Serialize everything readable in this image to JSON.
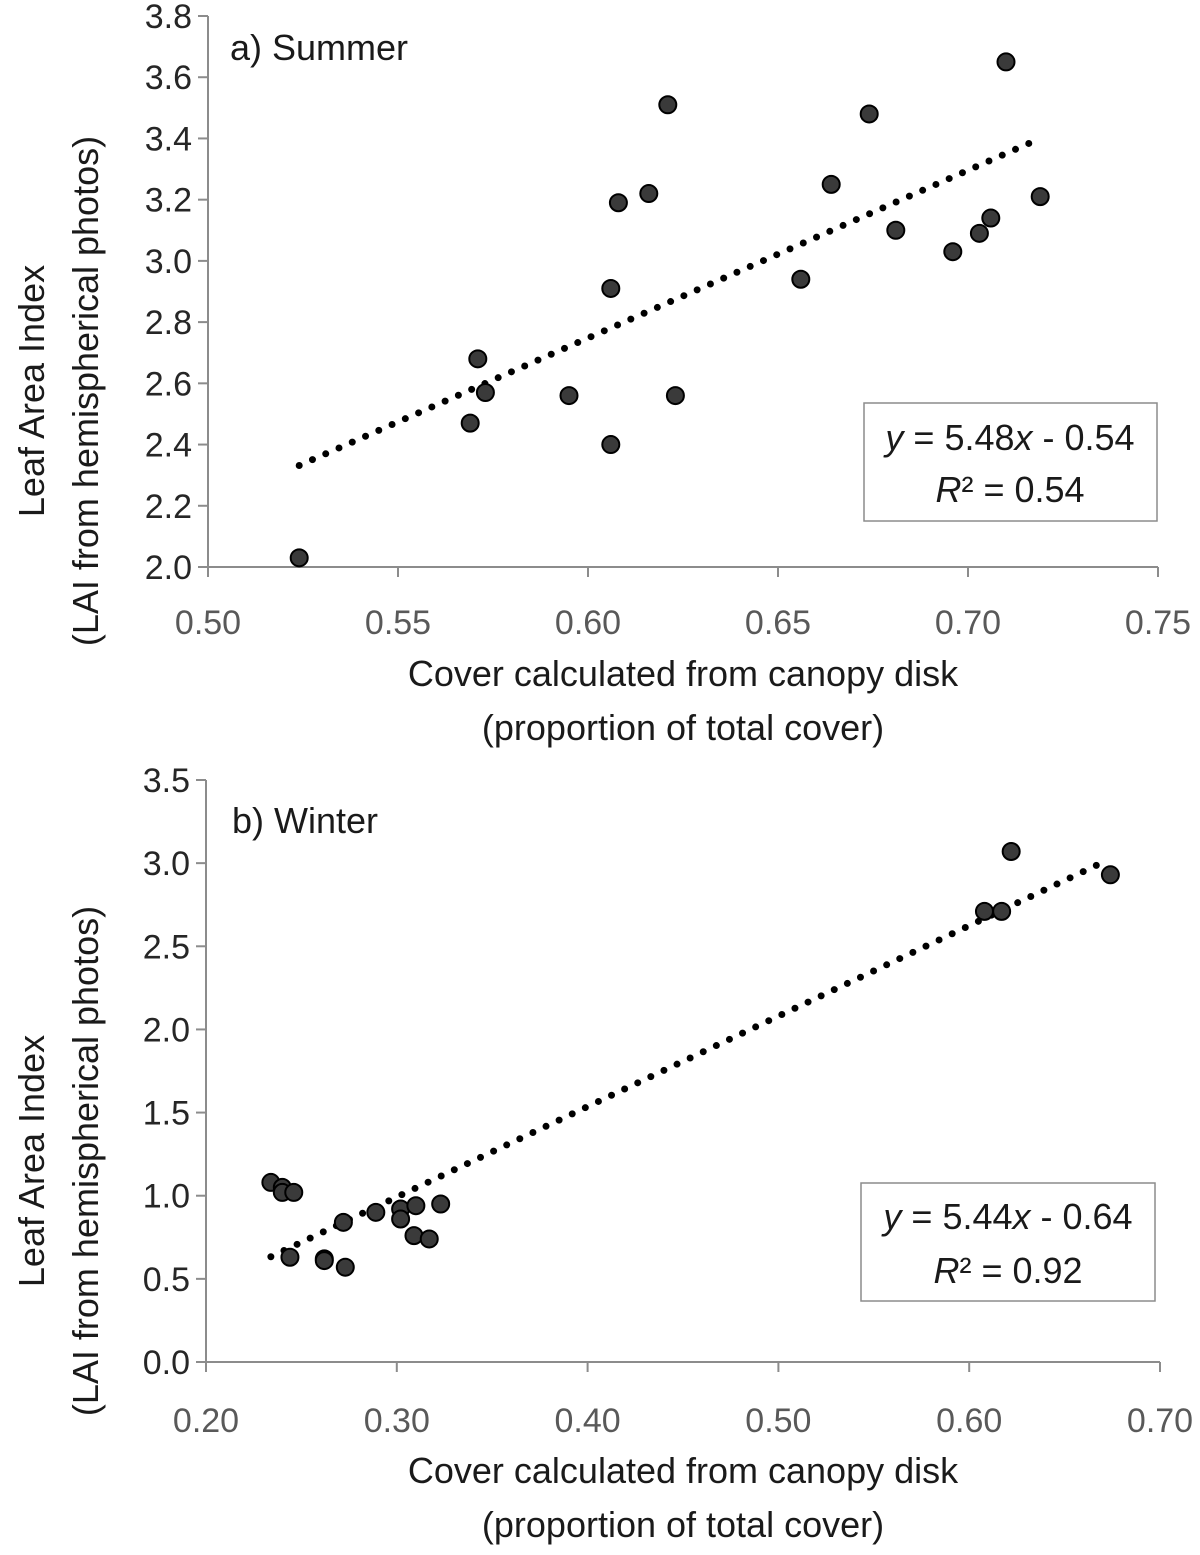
{
  "chart_data": [
    {
      "type": "scatter",
      "panel_label": "a) Summer",
      "xlabel": "Cover calculated from canopy disk",
      "xlabel2": "(proportion of total cover)",
      "ylabel": "Leaf Area Index",
      "ylabel2": "(LAI from hemispherical photos)",
      "xlim": [
        0.5,
        0.75
      ],
      "ylim": [
        2.0,
        3.8
      ],
      "xticks": [
        0.5,
        0.55,
        0.6,
        0.65,
        0.7,
        0.75
      ],
      "yticks": [
        2.0,
        2.2,
        2.4,
        2.6,
        2.8,
        3.0,
        3.2,
        3.4,
        3.6,
        3.8
      ],
      "x_decimals": 2,
      "y_decimals": 1,
      "grid": false,
      "series": [
        {
          "name": "Summer",
          "points": [
            [
              0.524,
              2.03
            ],
            [
              0.569,
              2.47
            ],
            [
              0.571,
              2.68
            ],
            [
              0.573,
              2.57
            ],
            [
              0.595,
              2.56
            ],
            [
              0.606,
              2.91
            ],
            [
              0.606,
              2.4
            ],
            [
              0.608,
              3.19
            ],
            [
              0.616,
              3.22
            ],
            [
              0.621,
              3.51
            ],
            [
              0.623,
              2.56
            ],
            [
              0.656,
              2.94
            ],
            [
              0.664,
              3.25
            ],
            [
              0.674,
              3.48
            ],
            [
              0.681,
              3.1
            ],
            [
              0.696,
              3.03
            ],
            [
              0.703,
              3.09
            ],
            [
              0.706,
              3.14
            ],
            [
              0.71,
              3.65
            ],
            [
              0.719,
              3.21
            ]
          ]
        }
      ],
      "trendline": {
        "slope": 5.48,
        "intercept": -0.54,
        "x_range": [
          0.524,
          0.719
        ],
        "style": "dotted"
      },
      "equation": {
        "y_part": "y",
        "text_mid": " = 5.48",
        "x_part": "x",
        "text_end": " - 0.54",
        "r_part": "R",
        "r_text": "² = 0.54",
        "placement": "bottom-right"
      }
    },
    {
      "type": "scatter",
      "panel_label": "b) Winter",
      "xlabel": "Cover calculated from canopy disk",
      "xlabel2": "(proportion of total cover)",
      "ylabel": "Leaf Area Index",
      "ylabel2": "(LAI from hemispherical photos)",
      "xlim": [
        0.2,
        0.7
      ],
      "ylim": [
        0.0,
        3.5
      ],
      "xticks": [
        0.2,
        0.3,
        0.4,
        0.5,
        0.6,
        0.7
      ],
      "yticks": [
        0.0,
        0.5,
        1.0,
        1.5,
        2.0,
        2.5,
        3.0,
        3.5
      ],
      "x_decimals": 2,
      "y_decimals": 1,
      "grid": false,
      "series": [
        {
          "name": "Winter",
          "points": [
            [
              0.234,
              1.08
            ],
            [
              0.24,
              1.05
            ],
            [
              0.24,
              1.02
            ],
            [
              0.246,
              1.02
            ],
            [
              0.244,
              0.63
            ],
            [
              0.262,
              0.62
            ],
            [
              0.262,
              0.61
            ],
            [
              0.272,
              0.84
            ],
            [
              0.273,
              0.57
            ],
            [
              0.289,
              0.9
            ],
            [
              0.302,
              0.92
            ],
            [
              0.302,
              0.86
            ],
            [
              0.31,
              0.94
            ],
            [
              0.309,
              0.76
            ],
            [
              0.317,
              0.74
            ],
            [
              0.323,
              0.95
            ],
            [
              0.608,
              2.71
            ],
            [
              0.617,
              2.71
            ],
            [
              0.622,
              3.07
            ],
            [
              0.674,
              2.93
            ]
          ]
        }
      ],
      "trendline": {
        "slope": 5.44,
        "intercept": -0.64,
        "x_range": [
          0.234,
          0.672
        ],
        "style": "dotted"
      },
      "equation": {
        "y_part": "y",
        "text_mid": " = 5.44",
        "x_part": "x",
        "text_end": " - 0.64",
        "r_part": "R",
        "r_text": "² = 0.92",
        "placement": "bottom-right"
      }
    }
  ]
}
